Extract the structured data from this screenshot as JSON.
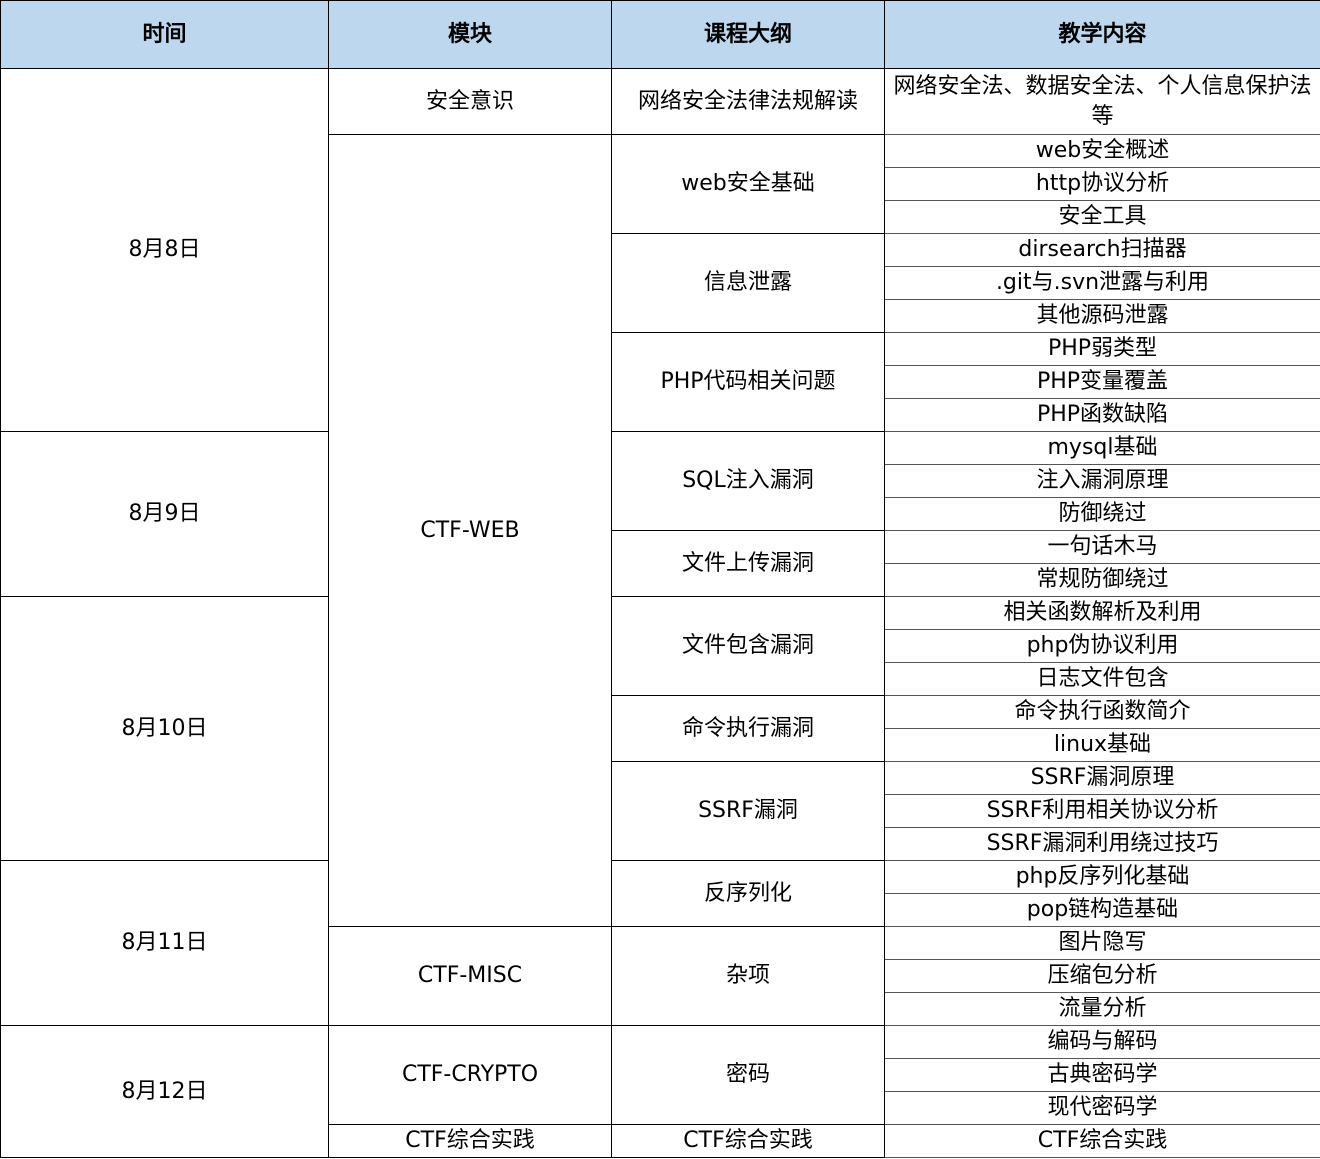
{
  "headers": [
    "时间",
    "模块",
    "课程大纲",
    "教学内容"
  ],
  "dates": [
    {
      "label": "8月8日",
      "rows": 10
    },
    {
      "label": "8月9日",
      "rows": 5
    },
    {
      "label": "8月10日",
      "rows": 8
    },
    {
      "label": "8月11日",
      "rows": 5
    },
    {
      "label": "8月12日",
      "rows": 4
    }
  ],
  "modules": [
    {
      "label": "安全意识",
      "rows": 1
    },
    {
      "label": "CTF-WEB",
      "rows": 24
    },
    {
      "label": "CTF-MISC",
      "rows": 3
    },
    {
      "label": "CTF-CRYPTO",
      "rows": 3
    },
    {
      "label": "CTF综合实践",
      "rows": 1
    }
  ],
  "outline": [
    {
      "label": "网络安全法律法规解读",
      "rows": 1
    },
    {
      "label": "web安全基础",
      "rows": 3
    },
    {
      "label": "信息泄露",
      "rows": 3
    },
    {
      "label": "PHP代码相关问题",
      "rows": 3
    },
    {
      "label": "SQL注入漏洞",
      "rows": 3
    },
    {
      "label": "文件上传漏洞",
      "rows": 2
    },
    {
      "label": "文件包含漏洞",
      "rows": 3
    },
    {
      "label": "命令执行漏洞",
      "rows": 2
    },
    {
      "label": "SSRF漏洞",
      "rows": 3
    },
    {
      "label": "反序列化",
      "rows": 2
    },
    {
      "label": "杂项",
      "rows": 3
    },
    {
      "label": "密码",
      "rows": 3
    },
    {
      "label": "CTF综合实践",
      "rows": 1
    }
  ],
  "content": [
    "网络安全法、数据安全法、个人信息保护法等",
    "web安全概述",
    "http协议分析",
    "安全工具",
    "dirsearch扫描器",
    ".git与.svn泄露与利用",
    "其他源码泄露",
    "PHP弱类型",
    "PHP变量覆盖",
    "PHP函数缺陷",
    "mysql基础",
    "注入漏洞原理",
    "防御绕过",
    "一句话木马",
    "常规防御绕过",
    "相关函数解析及利用",
    "php伪协议利用",
    "日志文件包含",
    "命令执行函数简介",
    "linux基础",
    "SSRF漏洞原理",
    "SSRF利用相关协议分析",
    "SSRF漏洞利用绕过技巧",
    "php反序列化基础",
    "pop链构造基础",
    "图片隐写",
    "压缩包分析",
    "流量分析",
    "编码与解码",
    "古典密码学",
    "现代密码学",
    "CTF综合实践"
  ]
}
